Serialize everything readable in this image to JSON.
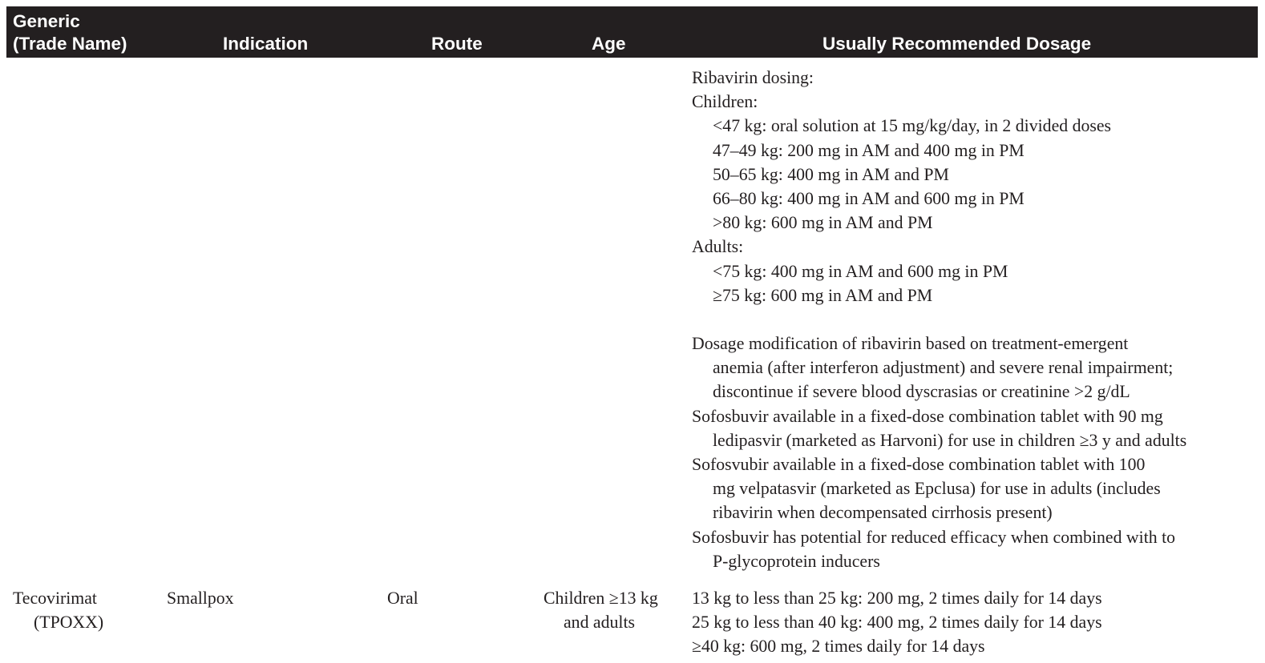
{
  "header": {
    "generic_line1": "Generic",
    "generic_line2": "(Trade Name)",
    "indication": "Indication",
    "route": "Route",
    "age": "Age",
    "dosage": "Usually Recommended Dosage"
  },
  "continued_row": {
    "ribavirin_title": "Ribavirin dosing:",
    "children_label": "Children:",
    "children_doses": [
      "<47 kg: oral solution at 15 mg/kg/day, in 2 divided doses",
      "47–49 kg: 200 mg in AM and 400 mg in PM",
      "50–65 kg: 400 mg in AM and PM",
      "66–80 kg: 400 mg in AM and 600 mg in PM",
      ">80 kg: 600 mg in AM and PM"
    ],
    "adults_label": "Adults:",
    "adult_doses": [
      "<75 kg: 400 mg in AM and 600 mg in PM",
      "≥75 kg: 600 mg in AM and PM"
    ],
    "notes": [
      {
        "first": "Dosage modification of ribavirin based on treatment-emergent",
        "rest": [
          "anemia (after interferon adjustment) and severe renal impairment;",
          "discontinue if severe blood dyscrasias or creatinine >2 g/dL"
        ]
      },
      {
        "first": "Sofosbuvir available in a fixed-dose combination tablet with 90 mg",
        "rest": [
          "ledipasvir (marketed as Harvoni) for use in children ≥3 y and adults"
        ]
      },
      {
        "first": "Sofosvubir available in a fixed-dose combination tablet with 100",
        "rest": [
          "mg velpatasvir (marketed as Epclusa) for use in adults (includes",
          "ribavirin when decompensated cirrhosis present)"
        ]
      },
      {
        "first": "Sofosbuvir has potential for reduced efficacy when combined with to",
        "rest": [
          "P-glycoprotein inducers"
        ]
      }
    ]
  },
  "tecovirimat_row": {
    "generic_line1": "Tecovirimat",
    "generic_line2": "(TPOXX)",
    "indication": "Smallpox",
    "route": "Oral",
    "age_line1": "Children ≥13 kg",
    "age_line2": "and adults",
    "dosage": [
      "13 kg to less than 25 kg: 200 mg, 2 times daily for 14 days",
      "25 kg to less than 40 kg: 400 mg, 2 times daily for 14 days",
      "≥40 kg: 600 mg, 2 times daily for 14 days"
    ]
  },
  "colors": {
    "header_background": "#231f20",
    "header_text": "#ffffff",
    "body_text": "#231f20"
  }
}
